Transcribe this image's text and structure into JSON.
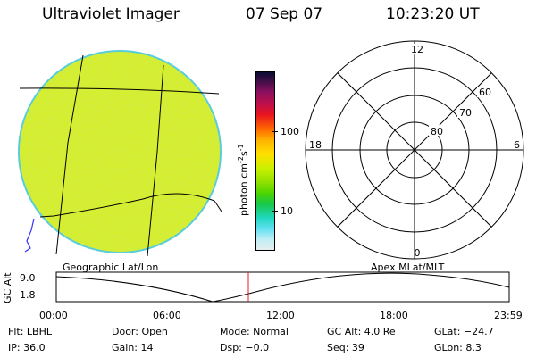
{
  "header": {
    "instrument": "Ultraviolet Imager",
    "date": "07 Sep 07",
    "time": "10:23:20 UT"
  },
  "colorbar": {
    "unit_label": "photon cm",
    "unit_exp1": "-2",
    "unit_s": "s",
    "unit_exp2": "-1",
    "tick_high": "100",
    "tick_low": "10"
  },
  "polar_plot": {
    "clock_top": "12",
    "clock_left": "18",
    "clock_right": "6",
    "clock_bottom": "0",
    "lat_60": "60",
    "lat_70": "70",
    "lat_80": "80"
  },
  "labels": {
    "geo": "Geographic Lat/Lon",
    "apex": "Apex  MLat/MLT"
  },
  "altitude_plot": {
    "axis_label": "GC Alt",
    "y_top": "9.0",
    "y_bottom": "1.8",
    "x_ticks": [
      "00:00",
      "06:00",
      "12:00",
      "18:00",
      "23:59"
    ]
  },
  "info": {
    "filter": "Flt: LBHL",
    "door": "Door: Open",
    "mode": "Mode: Normal",
    "gc_alt": "GC Alt: 4.0 Re",
    "glat": "GLat: −24.7",
    "ip": "IP: 36.0",
    "gain": "Gain: 14",
    "dsp": "Dsp:   −0.0",
    "seq": "Seq: 39",
    "glon": "GLon:   8.3"
  },
  "colors": {
    "disk_fill": "#d6ee2e",
    "disk_edge": "#55ccdd",
    "marker": "#e02020"
  }
}
